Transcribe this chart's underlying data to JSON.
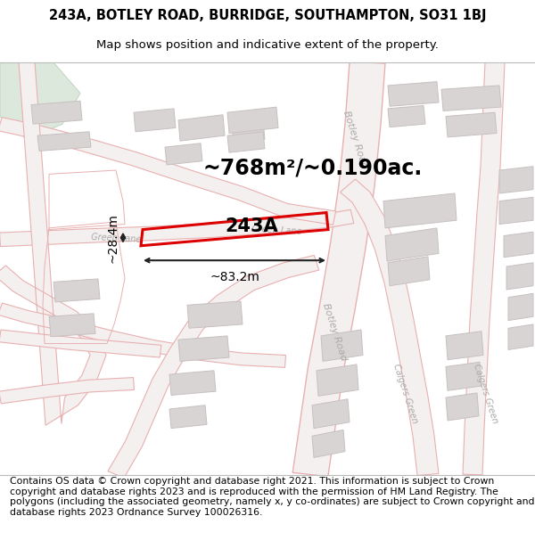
{
  "title_line1": "243A, BOTLEY ROAD, BURRIDGE, SOUTHAMPTON, SO31 1BJ",
  "title_line2": "Map shows position and indicative extent of the property.",
  "footer_text": "Contains OS data © Crown copyright and database right 2021. This information is subject to Crown copyright and database rights 2023 and is reproduced with the permission of HM Land Registry. The polygons (including the associated geometry, namely x, y co-ordinates) are subject to Crown copyright and database rights 2023 Ordnance Survey 100026316.",
  "area_label": "~768m²/~0.190ac.",
  "plot_label": "243A",
  "dim_width": "~83.2m",
  "dim_height": "~28.4m",
  "map_bg": "#f9f7f7",
  "road_outline": "#e8b0b0",
  "road_fill": "#f5f0f0",
  "building_fill": "#d8d4d4",
  "building_edge": "#c8c0c0",
  "plot_color": "#dd0000",
  "plot_fill": "none",
  "green_fill": "#dce8dc",
  "green_edge": "#c0d4c0",
  "road_label_color": "#aaaaaa",
  "annot_color": "#222222",
  "title_fontsize": 10.5,
  "subtitle_fontsize": 9.5,
  "footer_fontsize": 7.8,
  "area_fontsize": 17,
  "plot_label_fontsize": 15,
  "dim_fontsize": 10
}
